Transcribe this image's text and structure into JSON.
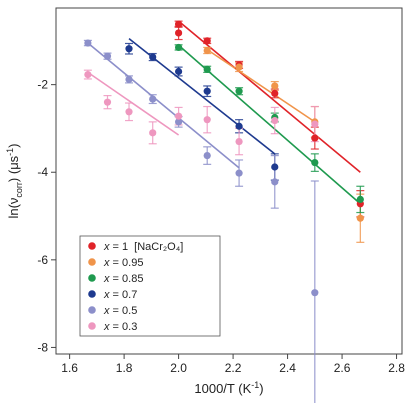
{
  "chart_data": {
    "type": "scatter",
    "xlabel_main": "1000/T (K",
    "xlabel_sup": "-1",
    "xlabel_close": ")",
    "ylabel_prefix": "ln(ν",
    "ylabel_sub": "corr",
    "ylabel_mid": ") (μs",
    "ylabel_sup": "-1",
    "ylabel_close": ")",
    "xlim": [
      1.55,
      2.82
    ],
    "ylim": [
      -8.15,
      -0.25
    ],
    "xticks": [
      1.6,
      1.8,
      2.0,
      2.2,
      2.4,
      2.6,
      2.8
    ],
    "xtick_labels": [
      "1.6",
      "1.8",
      "2.0",
      "2.2",
      "2.4",
      "2.6",
      "2.8"
    ],
    "yticks": [
      -2,
      -4,
      -6,
      -8
    ],
    "ytick_labels": [
      "-2",
      "-4",
      "-6",
      "-8"
    ],
    "legend_position": "bottom-left",
    "series": [
      {
        "name_x": "x",
        "name_eq": " = 1",
        "name_extra": "[NaCr₂O₄]",
        "color": "#e02329",
        "points": [
          {
            "x": 2.0,
            "y": -0.62,
            "err": 0.07
          },
          {
            "x": 2.0,
            "y": -0.82,
            "err": 0.15
          },
          {
            "x": 2.105,
            "y": -1.0,
            "err": 0.06
          },
          {
            "x": 2.222,
            "y": -1.55,
            "err": 0.08
          },
          {
            "x": 2.353,
            "y": -2.2,
            "err": 0.1
          },
          {
            "x": 2.5,
            "y": -3.22,
            "err": 0.25
          },
          {
            "x": 2.667,
            "y": -4.72,
            "err": 0.3
          }
        ],
        "fit": {
          "x1": 2.0,
          "y1": -0.55,
          "x2": 2.667,
          "y2": -4.0
        }
      },
      {
        "name_x": "x",
        "name_eq": " = 0.95",
        "name_extra": "",
        "color": "#f0944a",
        "points": [
          {
            "x": 2.105,
            "y": -1.22,
            "err": 0.07
          },
          {
            "x": 2.222,
            "y": -1.6,
            "err": 0.1
          },
          {
            "x": 2.353,
            "y": -2.03,
            "err": 0.1
          },
          {
            "x": 2.5,
            "y": -2.85,
            "err": 0.35
          },
          {
            "x": 2.667,
            "y": -5.05,
            "err": 0.55
          }
        ],
        "fit": {
          "x1": 2.105,
          "y1": -1.2,
          "x2": 2.5,
          "y2": -2.85
        }
      },
      {
        "name_x": "x",
        "name_eq": " = 0.85",
        "name_extra": "",
        "color": "#1f9a4f",
        "points": [
          {
            "x": 2.0,
            "y": -1.15,
            "err": 0.06
          },
          {
            "x": 2.105,
            "y": -1.65,
            "err": 0.07
          },
          {
            "x": 2.222,
            "y": -2.15,
            "err": 0.08
          },
          {
            "x": 2.353,
            "y": -2.75,
            "err": 0.1
          },
          {
            "x": 2.5,
            "y": -3.78,
            "err": 0.2
          },
          {
            "x": 2.667,
            "y": -4.62,
            "err": 0.3
          }
        ],
        "fit": {
          "x1": 2.0,
          "y1": -1.1,
          "x2": 2.667,
          "y2": -4.72
        }
      },
      {
        "name_x": "x",
        "name_eq": " = 0.7",
        "name_extra": "",
        "color": "#1e3a8f",
        "points": [
          {
            "x": 1.818,
            "y": -1.18,
            "err": 0.12
          },
          {
            "x": 1.905,
            "y": -1.37,
            "err": 0.08
          },
          {
            "x": 2.0,
            "y": -1.7,
            "err": 0.1
          },
          {
            "x": 2.105,
            "y": -2.15,
            "err": 0.12
          },
          {
            "x": 2.222,
            "y": -2.95,
            "err": 0.15
          },
          {
            "x": 2.353,
            "y": -3.88,
            "err": 0.3
          }
        ],
        "fit": {
          "x1": 1.818,
          "y1": -0.95,
          "x2": 2.353,
          "y2": -3.58
        }
      },
      {
        "name_x": "x",
        "name_eq": " = 0.5",
        "name_extra": "",
        "color": "#8c8fca",
        "points": [
          {
            "x": 1.667,
            "y": -1.05,
            "err": 0.06
          },
          {
            "x": 1.739,
            "y": -1.35,
            "err": 0.07
          },
          {
            "x": 1.818,
            "y": -1.88,
            "err": 0.08
          },
          {
            "x": 1.905,
            "y": -2.33,
            "err": 0.1
          },
          {
            "x": 2.0,
            "y": -2.85,
            "err": 0.12
          },
          {
            "x": 2.105,
            "y": -3.62,
            "err": 0.2
          },
          {
            "x": 2.222,
            "y": -4.02,
            "err": 0.3
          },
          {
            "x": 2.353,
            "y": -4.22,
            "err": 0.6
          },
          {
            "x": 2.5,
            "y": -6.75,
            "err": 2.55
          }
        ],
        "fit": {
          "x1": 1.667,
          "y1": -1.05,
          "x2": 2.222,
          "y2": -3.9
        }
      },
      {
        "name_x": "x",
        "name_eq": " = 0.3",
        "name_extra": "",
        "color": "#ee97bf",
        "points": [
          {
            "x": 1.667,
            "y": -1.77,
            "err": 0.1
          },
          {
            "x": 1.739,
            "y": -2.4,
            "err": 0.15
          },
          {
            "x": 1.818,
            "y": -2.62,
            "err": 0.2
          },
          {
            "x": 1.905,
            "y": -3.1,
            "err": 0.25
          },
          {
            "x": 2.0,
            "y": -2.72,
            "err": 0.2
          },
          {
            "x": 2.105,
            "y": -2.8,
            "err": 0.3
          },
          {
            "x": 2.222,
            "y": -3.3,
            "err": 0.3
          },
          {
            "x": 2.353,
            "y": -2.82,
            "err": 0.3
          },
          {
            "x": 2.5,
            "y": -2.9,
            "err": 0.4
          }
        ],
        "fit": {
          "x1": 1.667,
          "y1": -1.72,
          "x2": 2.0,
          "y2": -3.15
        }
      }
    ]
  }
}
